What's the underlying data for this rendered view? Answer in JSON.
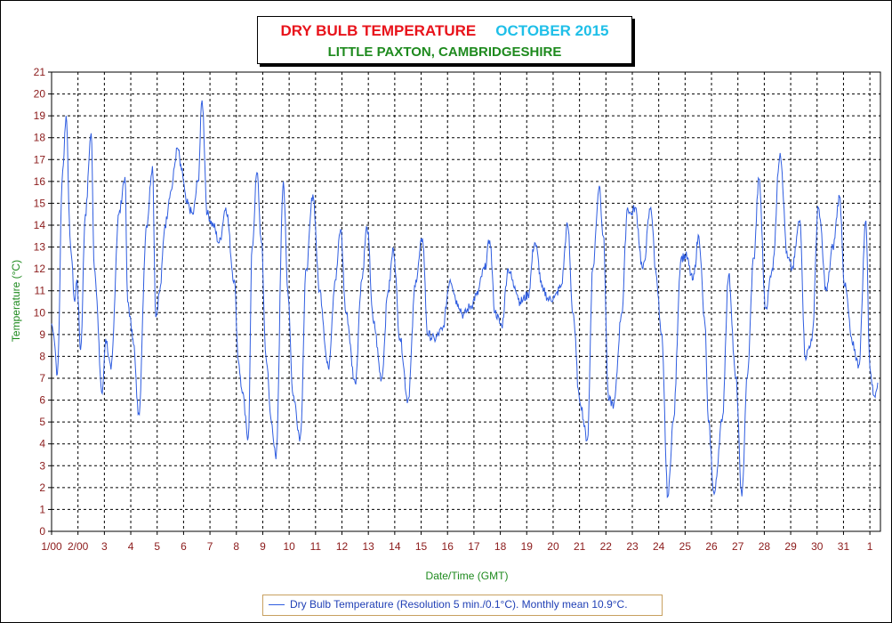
{
  "title": {
    "main": "DRY BULB TEMPERATURE",
    "period": "OCTOBER 2015",
    "location": "LITTLE PAXTON, CAMBRIDGESHIRE"
  },
  "legend": {
    "text": "Dry Bulb Temperature (Resolution 5 min./0.1°C). Monthly mean 10.9°C."
  },
  "colors": {
    "series": "#2f5de0",
    "axis_labels": "#8b1a1a",
    "axis_title": "#1e8a1e",
    "title_red": "#e8131b",
    "title_cyan": "#1fbfe8"
  },
  "chart_data": {
    "type": "line",
    "title": "DRY BULB TEMPERATURE OCTOBER 2015",
    "subtitle": "LITTLE PAXTON, CAMBRIDGESHIRE",
    "xlabel": "Date/Time (GMT)",
    "ylabel": "Temperature (°C)",
    "xlim": [
      0,
      31.4
    ],
    "ylim": [
      0,
      21
    ],
    "grid": true,
    "x_ticks": [
      {
        "x": 0,
        "label": "1/00"
      },
      {
        "x": 1,
        "label": "2/00"
      },
      {
        "x": 2,
        "label": "3"
      },
      {
        "x": 3,
        "label": "4"
      },
      {
        "x": 4,
        "label": "5"
      },
      {
        "x": 5,
        "label": "6"
      },
      {
        "x": 6,
        "label": "7"
      },
      {
        "x": 7,
        "label": "8"
      },
      {
        "x": 8,
        "label": "9"
      },
      {
        "x": 9,
        "label": "10"
      },
      {
        "x": 10,
        "label": "11"
      },
      {
        "x": 11,
        "label": "12"
      },
      {
        "x": 12,
        "label": "13"
      },
      {
        "x": 13,
        "label": "14"
      },
      {
        "x": 14,
        "label": "15"
      },
      {
        "x": 15,
        "label": "16"
      },
      {
        "x": 16,
        "label": "17"
      },
      {
        "x": 17,
        "label": "18"
      },
      {
        "x": 18,
        "label": "19"
      },
      {
        "x": 19,
        "label": "20"
      },
      {
        "x": 20,
        "label": "21"
      },
      {
        "x": 21,
        "label": "22"
      },
      {
        "x": 22,
        "label": "23"
      },
      {
        "x": 23,
        "label": "24"
      },
      {
        "x": 24,
        "label": "25"
      },
      {
        "x": 25,
        "label": "26"
      },
      {
        "x": 26,
        "label": "27"
      },
      {
        "x": 27,
        "label": "28"
      },
      {
        "x": 28,
        "label": "29"
      },
      {
        "x": 29,
        "label": "30"
      },
      {
        "x": 30,
        "label": "31"
      },
      {
        "x": 31,
        "label": "1"
      }
    ],
    "y_ticks": [
      0,
      1,
      2,
      3,
      4,
      5,
      6,
      7,
      8,
      9,
      10,
      11,
      12,
      13,
      14,
      15,
      16,
      17,
      18,
      19,
      20,
      21
    ],
    "series": [
      {
        "name": "Dry Bulb Temperature",
        "x": [
          0,
          0.08,
          0.22,
          0.42,
          0.55,
          0.72,
          0.88,
          0.96,
          1.1,
          1.28,
          1.5,
          1.62,
          1.92,
          2.05,
          2.25,
          2.55,
          2.78,
          2.88,
          3.05,
          3.08,
          3.3,
          3.6,
          3.82,
          3.95,
          4.1,
          4.3,
          4.5,
          4.78,
          4.92,
          5.12,
          5.35,
          5.55,
          5.7,
          5.9,
          6.12,
          6.35,
          6.6,
          6.92,
          7.08,
          7.2,
          7.45,
          7.6,
          7.78,
          7.95,
          8.12,
          8.33,
          8.5,
          8.78,
          8.95,
          9.15,
          9.42,
          9.65,
          9.9,
          10.15,
          10.48,
          10.75,
          10.95,
          11.15,
          11.5,
          11.75,
          11.95,
          12.2,
          12.5,
          12.75,
          12.95,
          13.2,
          13.5,
          13.8,
          14.05,
          14.25,
          14.5,
          14.8,
          15.1,
          15.4,
          15.6,
          15.88,
          16.1,
          16.4,
          16.6,
          16.8,
          17.05,
          17.3,
          17.55,
          17.75,
          18.05,
          18.3,
          18.62,
          18.85,
          19.05,
          19.3,
          19.55,
          19.75,
          20.0,
          20.3,
          20.5,
          20.75,
          20.9,
          21.1,
          21.3,
          21.6,
          21.82,
          21.95,
          22.1,
          22.4,
          22.7,
          22.9,
          23.1,
          23.35,
          23.55,
          23.85,
          24.02,
          24.3,
          24.52,
          24.75,
          24.88,
          25.1,
          25.4,
          25.65,
          25.92,
          26.15,
          26.35,
          26.6,
          26.8,
          27.05,
          27.3,
          27.6,
          27.88,
          28.05,
          28.35,
          28.55,
          28.8,
          29.05,
          29.35,
          29.6,
          29.85,
          30.05,
          30.35,
          30.58,
          30.85,
          31.0,
          31.15,
          31.3
        ],
        "y": [
          9.5,
          9.0,
          7.2,
          16.5,
          19.0,
          13.0,
          10.5,
          11.5,
          8.3,
          14.5,
          18.2,
          12.0,
          6.3,
          8.8,
          7.4,
          14.5,
          16.2,
          10.5,
          9.2,
          8.8,
          5.4,
          14.0,
          16.7,
          9.8,
          11.0,
          14.0,
          15.5,
          17.5,
          16.5,
          15.0,
          14.5,
          16.0,
          19.7,
          14.5,
          14.0,
          13.2,
          14.8,
          11.5,
          7.8,
          6.5,
          4.3,
          13.0,
          16.4,
          13.2,
          8.0,
          5.0,
          3.3,
          16.0,
          11.0,
          6.2,
          4.3,
          12.0,
          15.4,
          11.0,
          7.5,
          11.5,
          13.8,
          10.0,
          6.8,
          11.5,
          13.9,
          9.5,
          7.0,
          11.0,
          12.9,
          8.8,
          6.0,
          11.5,
          13.4,
          9.0,
          8.8,
          9.2,
          11.5,
          10.4,
          9.9,
          10.3,
          10.8,
          12.0,
          13.3,
          10.0,
          9.4,
          12.0,
          11.2,
          10.5,
          10.8,
          13.2,
          11.0,
          10.6,
          10.7,
          11.2,
          14.0,
          10.0,
          6.0,
          4.2,
          12.0,
          15.8,
          13.5,
          6.0,
          5.8,
          10.0,
          14.8,
          14.5,
          14.8,
          12.0,
          14.8,
          11.8,
          9.0,
          1.6,
          5.0,
          12.5,
          12.6,
          11.5,
          13.5,
          9.5,
          5.0,
          1.7,
          5.0,
          11.7,
          7.0,
          1.6,
          7.0,
          12.5,
          16.1,
          10.2,
          12.0,
          17.3,
          12.5,
          12.0,
          14.2,
          8.0,
          8.7,
          14.8,
          11.0,
          13.0,
          15.3,
          11.2,
          8.5,
          7.6,
          14.2,
          7.5,
          6.2,
          6.8
        ]
      }
    ]
  }
}
